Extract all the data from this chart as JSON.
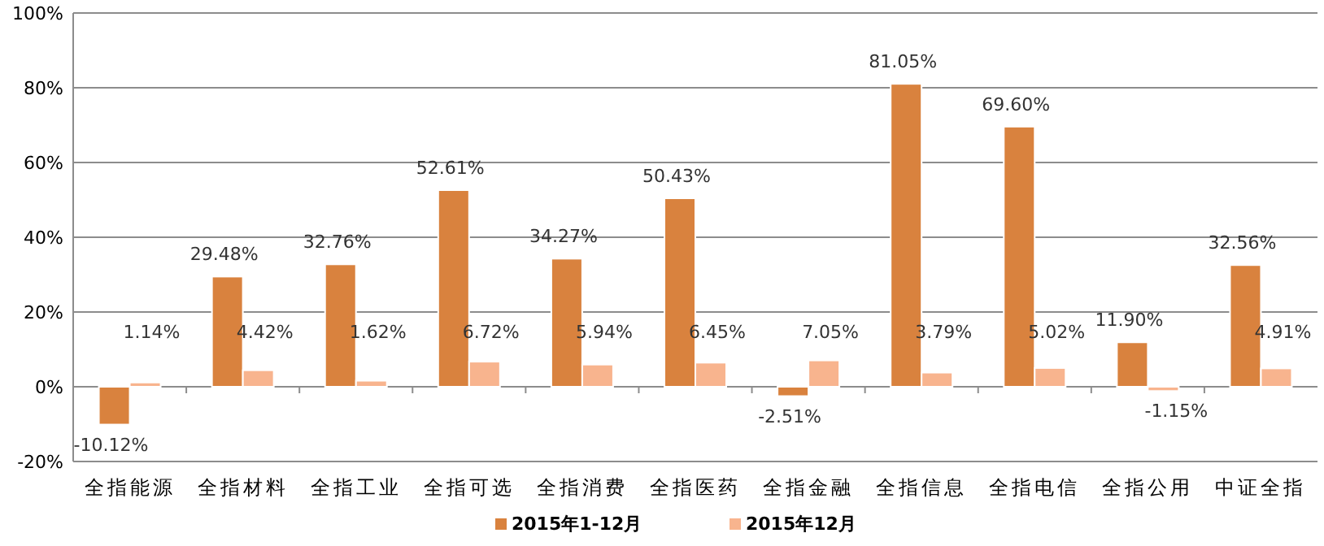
{
  "chart_data": {
    "type": "bar",
    "categories": [
      "全指能源",
      "全指材料",
      "全指工业",
      "全指可选",
      "全指消费",
      "全指医药",
      "全指金融",
      "全指信息",
      "全指电信",
      "全指公用",
      "中证全指"
    ],
    "series": [
      {
        "name": "2015年1-12月",
        "color": "#d9823e",
        "values": [
          -10.12,
          29.48,
          32.76,
          52.61,
          34.27,
          50.43,
          -2.51,
          81.05,
          69.6,
          11.9,
          32.56
        ],
        "value_labels": [
          "-10.12%",
          "29.48%",
          "32.76%",
          "52.61%",
          "34.27%",
          "50.43%",
          "-2.51%",
          "81.05%",
          "69.60%",
          "11.90%",
          "32.56%"
        ]
      },
      {
        "name": "2015年12月",
        "color": "#f8b48e",
        "values": [
          1.14,
          4.42,
          1.62,
          6.72,
          5.94,
          6.45,
          7.05,
          3.79,
          5.02,
          -1.15,
          4.91
        ],
        "value_labels": [
          "1.14%",
          "4.42%",
          "1.62%",
          "6.72%",
          "5.94%",
          "6.45%",
          "7.05%",
          "3.79%",
          "5.02%",
          "-1.15%",
          "4.91%"
        ]
      }
    ],
    "ylim": [
      -20,
      100
    ],
    "yticks": [
      {
        "value": -20,
        "label": "-20%"
      },
      {
        "value": 0,
        "label": "0%"
      },
      {
        "value": 20,
        "label": "20%"
      },
      {
        "value": 40,
        "label": "40%"
      },
      {
        "value": 60,
        "label": "60%"
      },
      {
        "value": 80,
        "label": "80%"
      },
      {
        "value": 100,
        "label": "100%"
      }
    ],
    "grid": "y",
    "legend": "bottom"
  }
}
